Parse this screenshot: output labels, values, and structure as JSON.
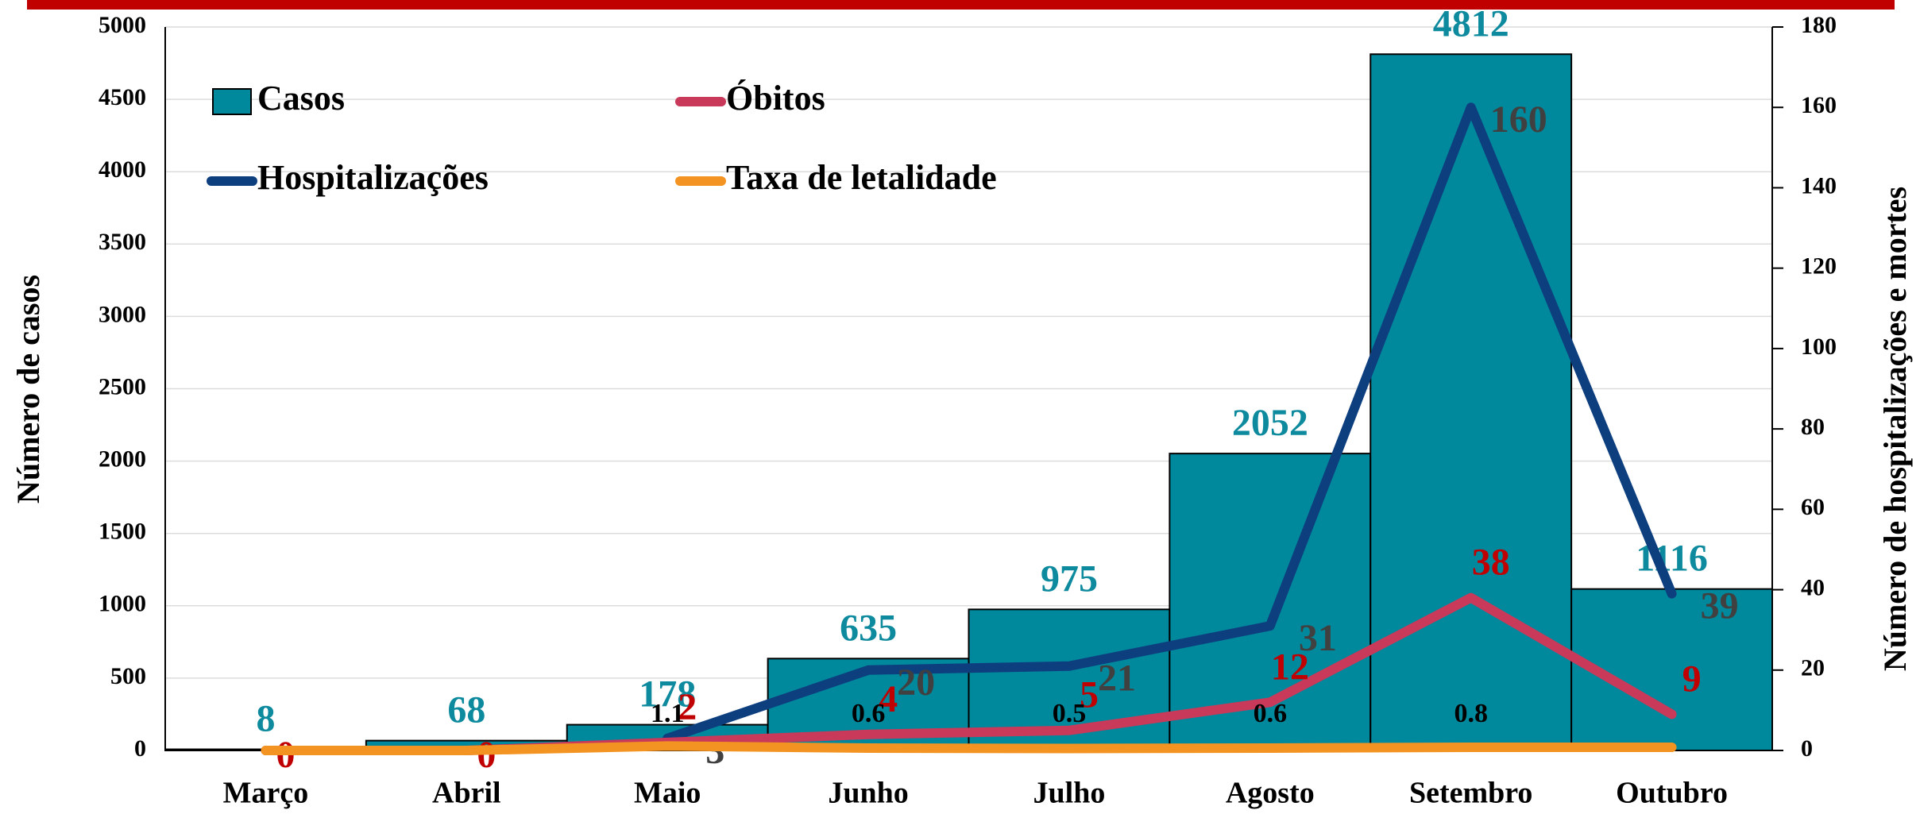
{
  "chart_data": {
    "type": "bar",
    "y_label": "Número de casos",
    "y2_label": "Número de hospitalizações e mortes",
    "categories": [
      "Março",
      "Abril",
      "Maio",
      "Junho",
      "Julho",
      "Agosto",
      "Setembro",
      "Outubro"
    ],
    "series": [
      {
        "name": "Casos",
        "type": "bar",
        "color": "#00889c",
        "label_color": "#0e8a9e",
        "values": [
          8,
          68,
          178,
          635,
          975,
          2052,
          4812,
          1116
        ]
      },
      {
        "name": "Óbitos",
        "type": "line",
        "axis": "y2",
        "color": "#c8395a",
        "label_color": "#c00000",
        "values": [
          0,
          0,
          2,
          4,
          5,
          12,
          38,
          9
        ]
      },
      {
        "name": "Hospitalizações",
        "type": "line",
        "axis": "y2",
        "color": "#0d3f7f",
        "label_color": "#404040",
        "values": [
          null,
          null,
          3,
          20,
          21,
          31,
          160,
          39
        ]
      },
      {
        "name": "Taxa de letalidade",
        "type": "line",
        "axis": "y2",
        "color": "#f39422",
        "label_color": "#000000",
        "values": [
          0,
          0,
          1.1,
          0.6,
          0.5,
          0.6,
          0.8,
          0.8
        ],
        "value_labels": [
          null,
          null,
          "1.1",
          "0.6",
          "0.5",
          "0.6",
          "0.8",
          null
        ]
      }
    ],
    "ylim": [
      0,
      5000
    ],
    "yticks": [
      0,
      500,
      1000,
      1500,
      2000,
      2500,
      3000,
      3500,
      4000,
      4500,
      5000
    ],
    "y2lim": [
      0,
      180
    ],
    "y2ticks": [
      0,
      20,
      40,
      60,
      80,
      100,
      120,
      140,
      160,
      180
    ],
    "grid": true
  }
}
